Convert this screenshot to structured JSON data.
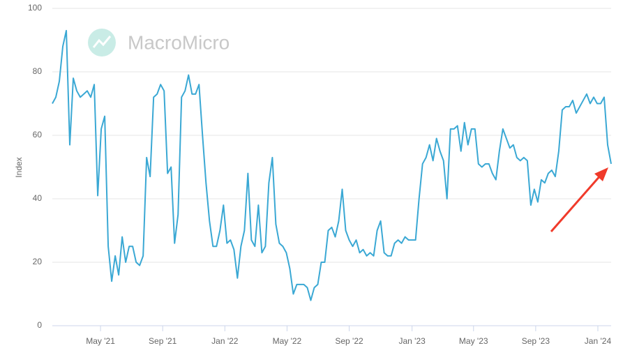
{
  "chart_data": {
    "type": "line",
    "watermark": "MacroMicro",
    "y_label": "Index",
    "series": [
      {
        "color": "#3aa8d4",
        "values": [
          70,
          72,
          77,
          88,
          93,
          57,
          78,
          74,
          72,
          73,
          74,
          72,
          76,
          41,
          62,
          66,
          25,
          14,
          22,
          16,
          28,
          20,
          25,
          25,
          20,
          19,
          22,
          53,
          47,
          72,
          73,
          76,
          74,
          48,
          50,
          26,
          35,
          72,
          74,
          79,
          73,
          73,
          76,
          60,
          45,
          33,
          25,
          25,
          30,
          38,
          26,
          27,
          24,
          15,
          25,
          30,
          48,
          27,
          25,
          38,
          23,
          25,
          45,
          53,
          32,
          26,
          25,
          23,
          18,
          10,
          13,
          13,
          13,
          12,
          8,
          12,
          13,
          20,
          20,
          30,
          31,
          28,
          33,
          43,
          30,
          27,
          25,
          27,
          23,
          24,
          22,
          23,
          22,
          30,
          33,
          23,
          22,
          22,
          26,
          27,
          26,
          28,
          27,
          27,
          27,
          40,
          51,
          53,
          57,
          52,
          59,
          55,
          52,
          40,
          62,
          62,
          63,
          55,
          64,
          57,
          62,
          62,
          51,
          50,
          51,
          51,
          48,
          46,
          55,
          62,
          59,
          56,
          57,
          53,
          52,
          53,
          52,
          38,
          43,
          39,
          46,
          45,
          48,
          49,
          47,
          55,
          68,
          69,
          69,
          71,
          67,
          69,
          71,
          73,
          70,
          72,
          70,
          70,
          72,
          57,
          51
        ]
      }
    ],
    "xlim": [
      0,
      160
    ],
    "xticks": [
      {
        "value": 13.8,
        "label": "May '21"
      },
      {
        "value": 31.6,
        "label": "Sep '21"
      },
      {
        "value": 49.4,
        "label": "Jan '22"
      },
      {
        "value": 67.2,
        "label": "May '22"
      },
      {
        "value": 85,
        "label": "Sep '22"
      },
      {
        "value": 103,
        "label": "Jan '23"
      },
      {
        "value": 120.6,
        "label": "May '23"
      },
      {
        "value": 138.4,
        "label": "Sep '23"
      },
      {
        "value": 156.2,
        "label": "Jan '24"
      }
    ],
    "ylim": [
      0,
      100
    ],
    "yticks": [
      0,
      20,
      40,
      60,
      80,
      100
    ],
    "grid": true
  }
}
